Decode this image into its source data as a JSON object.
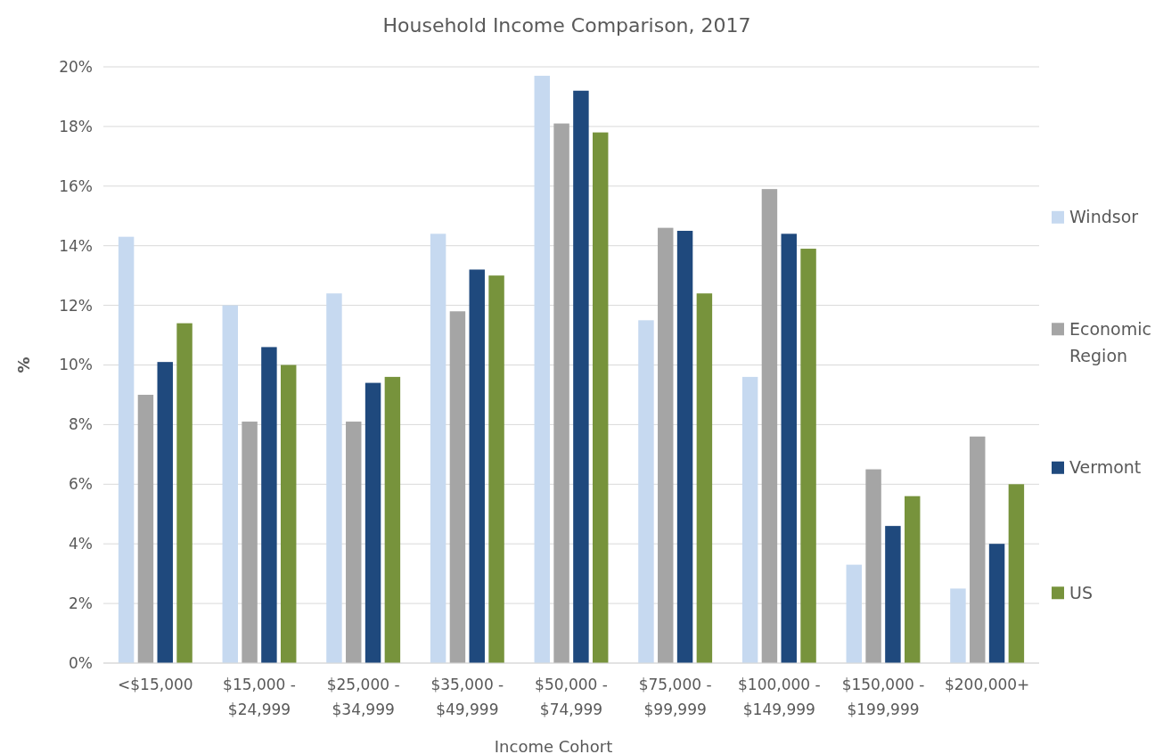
{
  "chart_data": {
    "type": "bar",
    "title": "Household Income Comparison, 2017",
    "xlabel": "Income Cohort",
    "ylabel": "%",
    "categories": [
      "<$15,000",
      "$15,000 - $24,999",
      "$25,000 - $34,999",
      "$35,000 - $49,999",
      "$50,000 - $74,999",
      "$75,000 - $99,999",
      "$100,000 - $149,999",
      "$150,000 - $199,999",
      "$200,000+"
    ],
    "series": [
      {
        "name": "Windsor",
        "color": "#c6d9f0",
        "values": [
          14.3,
          12.0,
          12.4,
          14.4,
          19.7,
          11.5,
          9.6,
          3.3,
          2.5
        ]
      },
      {
        "name": "Economic Region",
        "color": "#a5a5a5",
        "values": [
          9.0,
          8.1,
          8.1,
          11.8,
          18.1,
          14.6,
          15.9,
          6.5,
          7.6
        ]
      },
      {
        "name": "Vermont",
        "color": "#1f497d",
        "values": [
          10.1,
          10.6,
          9.4,
          13.2,
          19.2,
          14.5,
          14.4,
          4.6,
          4.0
        ]
      },
      {
        "name": "US",
        "color": "#77933c",
        "values": [
          11.4,
          10.0,
          9.6,
          13.0,
          17.8,
          12.4,
          13.9,
          5.6,
          6.0
        ]
      }
    ],
    "ylim": [
      0,
      20
    ],
    "yticks": [
      {
        "value": 0,
        "label": "0%"
      },
      {
        "value": 2,
        "label": "2%"
      },
      {
        "value": 4,
        "label": "4%"
      },
      {
        "value": 6,
        "label": "6%"
      },
      {
        "value": 8,
        "label": "8%"
      },
      {
        "value": 10,
        "label": "10%"
      },
      {
        "value": 12,
        "label": "12%"
      },
      {
        "value": 14,
        "label": "14%"
      },
      {
        "value": 16,
        "label": "16%"
      },
      {
        "value": 18,
        "label": "18%"
      },
      {
        "value": 20,
        "label": "20%"
      }
    ],
    "grid": "y",
    "legend": "right"
  }
}
